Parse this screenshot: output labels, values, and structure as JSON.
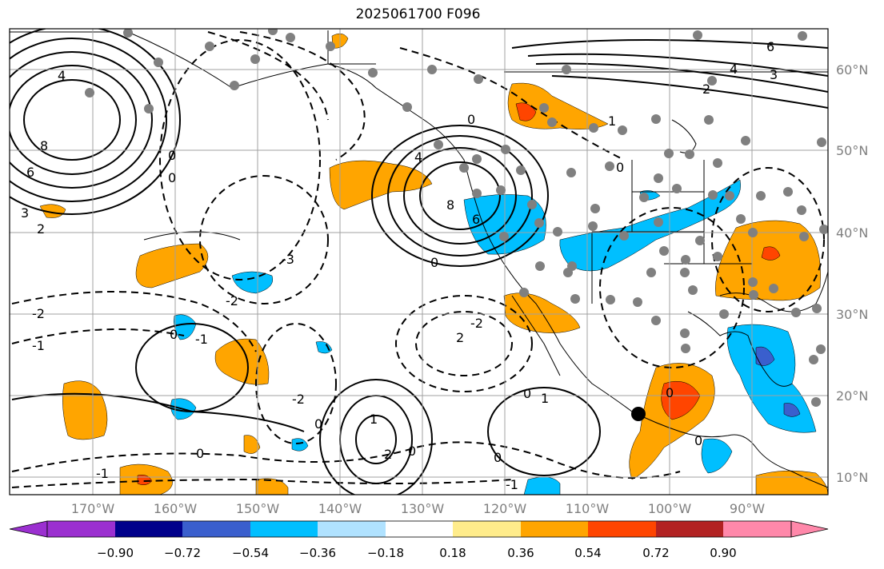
{
  "title": "2025061700 F096",
  "map": {
    "longitude_labels": [
      "170°W",
      "160°W",
      "150°W",
      "140°W",
      "130°W",
      "120°W",
      "110°W",
      "100°W",
      "90°W"
    ],
    "latitude_labels": [
      "60°N",
      "50°N",
      "40°N",
      "30°N",
      "20°N",
      "10°N"
    ],
    "colors": {
      "gridline": "#a0a0a0",
      "land_outline": "#000000",
      "station_marker": "#808080",
      "highlight_point": "#000000"
    },
    "contour_labels": [
      {
        "text": "4"
      },
      {
        "text": "8"
      },
      {
        "text": "6"
      },
      {
        "text": "2"
      },
      {
        "text": "3"
      },
      {
        "text": "0"
      },
      {
        "text": "-2"
      },
      {
        "text": "0"
      },
      {
        "text": "-3"
      },
      {
        "text": "4"
      },
      {
        "text": "0"
      },
      {
        "text": "8"
      },
      {
        "text": "6"
      },
      {
        "text": "0"
      },
      {
        "text": "-2"
      },
      {
        "text": "2"
      },
      {
        "text": "-1"
      },
      {
        "text": "0"
      },
      {
        "text": "-1"
      },
      {
        "text": "0"
      },
      {
        "text": "-2"
      },
      {
        "text": "1"
      },
      {
        "text": "2"
      },
      {
        "text": "0"
      },
      {
        "text": "0"
      },
      {
        "text": "0"
      },
      {
        "text": "-1"
      },
      {
        "text": "0"
      },
      {
        "text": "1"
      },
      {
        "text": "4"
      },
      {
        "text": "3"
      },
      {
        "text": "2"
      },
      {
        "text": "6"
      },
      {
        "text": "0"
      },
      {
        "text": "1"
      },
      {
        "text": "-2"
      },
      {
        "text": "-1"
      },
      {
        "text": "0"
      },
      {
        "text": "0"
      }
    ]
  },
  "colorbar": {
    "tick_labels": [
      "−0.90",
      "−0.72",
      "−0.54",
      "−0.36",
      "−0.18",
      "0.18",
      "0.36",
      "0.54",
      "0.72",
      "0.90"
    ],
    "colors": [
      "#9b30d0",
      "#00008b",
      "#3a5fcd",
      "#00bfff",
      "#b0e2ff",
      "#ffffff",
      "#ffec8b",
      "#ffa500",
      "#ff4500",
      "#b22222",
      "#ff88aa"
    ]
  }
}
